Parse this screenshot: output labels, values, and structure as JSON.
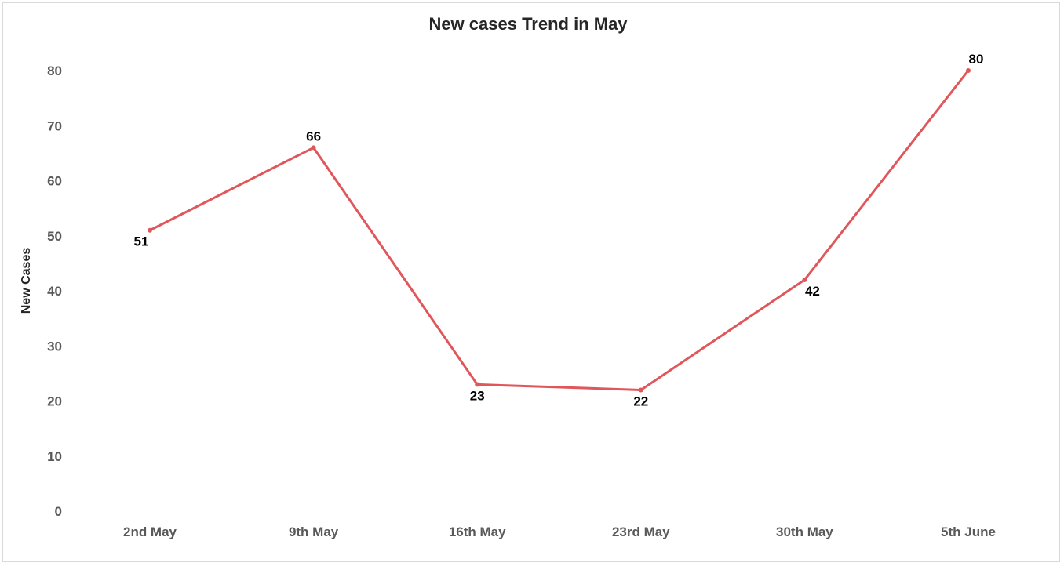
{
  "chart_data": {
    "type": "line",
    "title": "New cases Trend in May",
    "xlabel": "",
    "ylabel": "New Cases",
    "categories": [
      "2nd May",
      "9th May",
      "16th May",
      "23rd May",
      "30th May",
      "5th June"
    ],
    "series": [
      {
        "values": [
          51,
          66,
          23,
          22,
          42,
          80
        ],
        "color": "#e0575b"
      }
    ],
    "ylim": [
      0,
      80
    ],
    "yticks": [
      0,
      10,
      20,
      30,
      40,
      50,
      60,
      70,
      80
    ],
    "grid": false,
    "legend": "none",
    "data_labels": true
  }
}
